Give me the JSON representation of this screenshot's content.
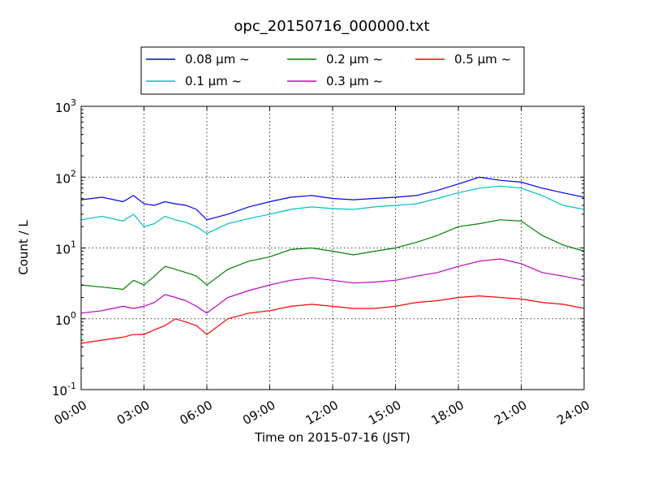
{
  "chart_data": {
    "type": "line",
    "title": "opc_20150716_000000.txt",
    "xlabel": "Time on 2015-07-16 (JST)",
    "ylabel": "Count / L",
    "yscale": "log",
    "ylim": [
      0.1,
      1000
    ],
    "xlim": [
      "00:00",
      "24:00"
    ],
    "grid": true,
    "legend_position": "top-center",
    "x_ticks": [
      "00:00",
      "03:00",
      "06:00",
      "09:00",
      "12:00",
      "15:00",
      "18:00",
      "21:00",
      "24:00"
    ],
    "y_ticks": [
      {
        "value": 0.1,
        "base": "10",
        "exp": "-1"
      },
      {
        "value": 1,
        "base": "10",
        "exp": "0"
      },
      {
        "value": 10,
        "base": "10",
        "exp": "1"
      },
      {
        "value": 100,
        "base": "10",
        "exp": "2"
      },
      {
        "value": 1000,
        "base": "10",
        "exp": "3"
      }
    ],
    "x": [
      "00:00",
      "01:00",
      "02:00",
      "02:30",
      "03:00",
      "03:30",
      "04:00",
      "04:30",
      "05:00",
      "05:30",
      "06:00",
      "07:00",
      "08:00",
      "09:00",
      "10:00",
      "11:00",
      "12:00",
      "13:00",
      "14:00",
      "15:00",
      "16:00",
      "17:00",
      "18:00",
      "19:00",
      "20:00",
      "21:00",
      "22:00",
      "23:00",
      "24:00"
    ],
    "series": [
      {
        "name": "0.08 µm ~",
        "color": "#0000ff",
        "values": [
          48,
          52,
          45,
          55,
          42,
          40,
          45,
          42,
          40,
          35,
          25,
          30,
          38,
          45,
          52,
          55,
          50,
          48,
          50,
          52,
          55,
          65,
          80,
          100,
          90,
          85,
          70,
          60,
          52
        ]
      },
      {
        "name": "0.1 µm ~",
        "color": "#00bfbf",
        "values": [
          25,
          28,
          24,
          30,
          20,
          22,
          28,
          25,
          23,
          20,
          16,
          22,
          26,
          30,
          35,
          38,
          36,
          35,
          38,
          40,
          42,
          50,
          60,
          70,
          75,
          70,
          55,
          40,
          35
        ]
      },
      {
        "name": "0.2 µm ~",
        "color": "#008000",
        "values": [
          3.0,
          2.8,
          2.6,
          3.5,
          3.0,
          4.0,
          5.5,
          5.0,
          4.5,
          4.0,
          3.0,
          5.0,
          6.5,
          7.5,
          9.5,
          10.0,
          9.0,
          8.0,
          9.0,
          10.0,
          12.0,
          15.0,
          20.0,
          22.0,
          25.0,
          24.0,
          15.0,
          11.0,
          9.0
        ]
      },
      {
        "name": "0.3 µm ~",
        "color": "#bf00bf",
        "values": [
          1.2,
          1.3,
          1.5,
          1.4,
          1.5,
          1.7,
          2.2,
          2.0,
          1.8,
          1.5,
          1.2,
          2.0,
          2.5,
          3.0,
          3.5,
          3.8,
          3.5,
          3.2,
          3.3,
          3.5,
          4.0,
          4.5,
          5.5,
          6.5,
          7.0,
          6.0,
          4.5,
          4.0,
          3.5
        ]
      },
      {
        "name": "0.5 µm ~",
        "color": "#ff0000",
        "values": [
          0.45,
          0.5,
          0.55,
          0.6,
          0.6,
          0.7,
          0.8,
          1.0,
          0.9,
          0.8,
          0.6,
          1.0,
          1.2,
          1.3,
          1.5,
          1.6,
          1.5,
          1.4,
          1.4,
          1.5,
          1.7,
          1.8,
          2.0,
          2.1,
          2.0,
          1.9,
          1.7,
          1.6,
          1.4
        ]
      }
    ]
  }
}
